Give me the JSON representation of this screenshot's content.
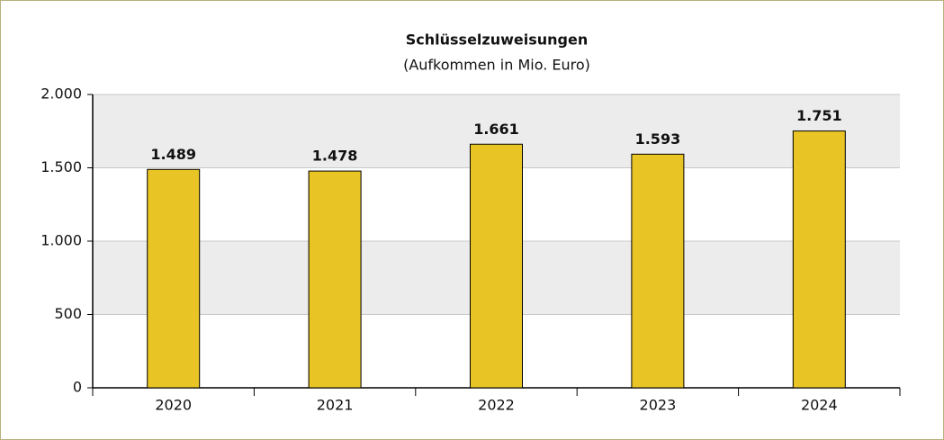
{
  "chart_data": {
    "type": "bar",
    "title": "Schlüsselzuweisungen",
    "subtitle": "(Aufkommen in Mio. Euro)",
    "categories": [
      "2020",
      "2021",
      "2022",
      "2023",
      "2024"
    ],
    "values": [
      1489,
      1478,
      1661,
      1593,
      1751
    ],
    "value_labels": [
      "1.489",
      "1.478",
      "1.661",
      "1.593",
      "1.751"
    ],
    "color": "#e8c424",
    "ylim": [
      0,
      2000
    ],
    "yticks": [
      0,
      500,
      {
        "value": 1000,
        "label": "1.000"
      },
      {
        "value": 1500,
        "label": "1.500"
      },
      {
        "value": 2000,
        "label": "2.000"
      }
    ],
    "grid": true
  }
}
